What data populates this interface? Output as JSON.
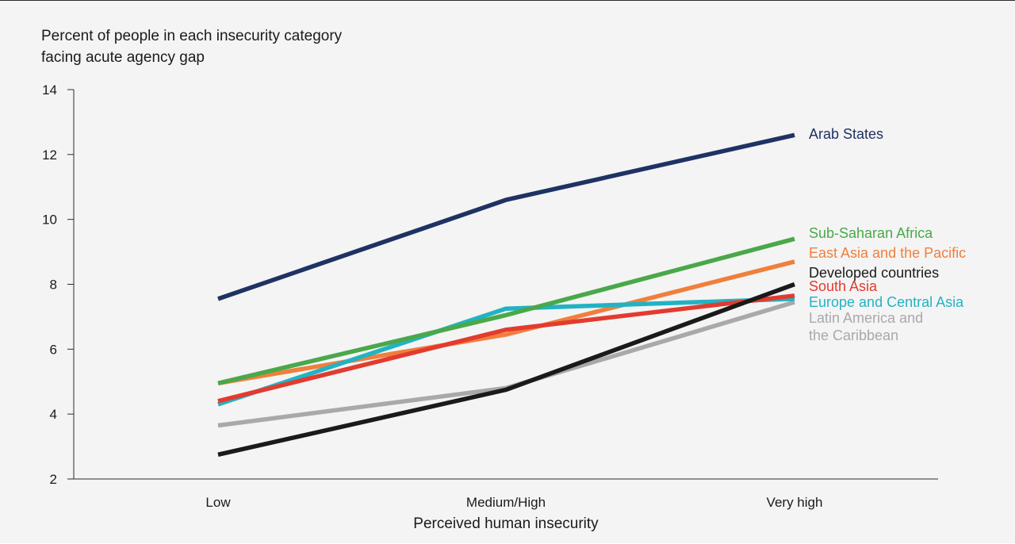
{
  "chart_data": {
    "type": "line",
    "title": "",
    "ylabel_lines": [
      "Percent of people in each insecurity category",
      "facing acute agency gap"
    ],
    "xlabel": "Perceived human insecurity",
    "categories": [
      "Low",
      "Medium/High",
      "Very high"
    ],
    "ylim": [
      2,
      14
    ],
    "yticks": [
      2,
      4,
      6,
      8,
      10,
      12,
      14
    ],
    "grid": false,
    "legend": "direct labels at right end of each line",
    "series": [
      {
        "name": "Arab States",
        "label_lines": [
          "Arab States"
        ],
        "values": [
          7.55,
          10.6,
          12.6
        ],
        "color": "#1f3264"
      },
      {
        "name": "Sub-Saharan Africa",
        "label_lines": [
          "Sub-Saharan Africa"
        ],
        "values": [
          4.95,
          7.05,
          9.4
        ],
        "color": "#4aa84a"
      },
      {
        "name": "East Asia and the Pacific",
        "label_lines": [
          "East Asia and the Pacific"
        ],
        "values": [
          4.95,
          6.45,
          8.7
        ],
        "color": "#f07f3c"
      },
      {
        "name": "Developed countries",
        "label_lines": [
          "Developed countries"
        ],
        "values": [
          2.75,
          4.75,
          8.0
        ],
        "color": "#1a1a1a"
      },
      {
        "name": "South Asia",
        "label_lines": [
          "South Asia"
        ],
        "values": [
          4.4,
          6.6,
          7.65
        ],
        "color": "#e23b2f"
      },
      {
        "name": "Europe and Central Asia",
        "label_lines": [
          "Europe and Central Asia"
        ],
        "values": [
          4.3,
          7.25,
          7.55
        ],
        "color": "#22b3c3"
      },
      {
        "name": "Latin America and the Caribbean",
        "label_lines": [
          "Latin America and",
          "the Caribbean"
        ],
        "values": [
          3.65,
          4.8,
          7.45
        ],
        "color": "#a9a9ab"
      }
    ]
  }
}
